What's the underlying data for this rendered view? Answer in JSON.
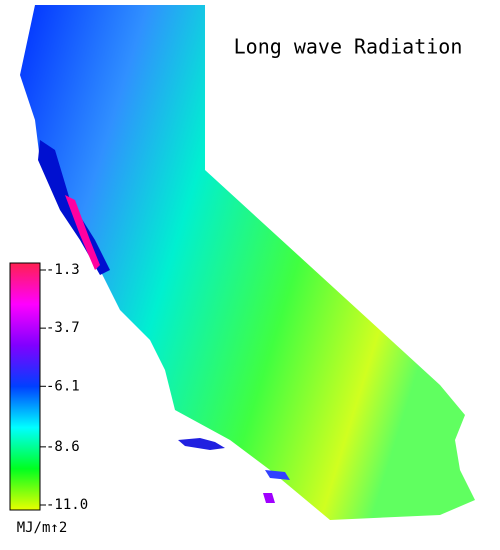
{
  "title": "Long wave Radiation",
  "colorbar": {
    "unit": "MJ/m↑2",
    "range": [
      -11.0,
      -1.3
    ],
    "ticks": [
      -1.3,
      -3.7,
      -6.1,
      -8.6,
      {
        "value": -11.0,
        "label": "-11.0"
      }
    ],
    "colors": [
      "#e8ff00",
      "#00ff20",
      "#00ffff",
      "#0040ff",
      "#8000ff",
      "#ff00ff",
      "#ff2050"
    ]
  }
}
